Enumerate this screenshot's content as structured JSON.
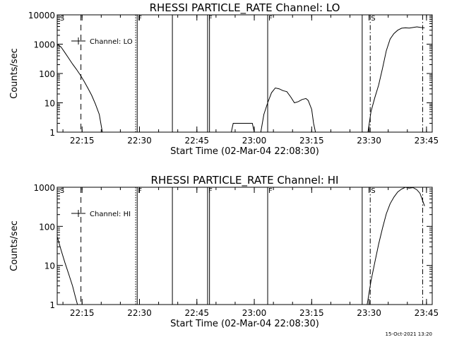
{
  "chart_data": [
    {
      "type": "line",
      "title": "RHESSI PARTICLE_RATE Channel: LO",
      "xlabel": "Start Time (02-Mar-04 22:08:30)",
      "ylabel": "Counts/sec",
      "yscale": "log",
      "ylim": [
        1,
        10000
      ],
      "xlim": [
        0,
        98
      ],
      "x_units": "minutes since 22:08:30",
      "yticks": [
        {
          "value": 1,
          "label": "1"
        },
        {
          "value": 10,
          "label": "10"
        },
        {
          "value": 100,
          "label": "100"
        },
        {
          "value": 1000,
          "label": "1000"
        },
        {
          "value": 10000,
          "label": "10000"
        }
      ],
      "xticks": [
        {
          "value": 6.5,
          "label": "22:15"
        },
        {
          "value": 21.5,
          "label": "22:30"
        },
        {
          "value": 36.5,
          "label": "22:45"
        },
        {
          "value": 51.5,
          "label": "23:00"
        },
        {
          "value": 66.5,
          "label": "23:15"
        },
        {
          "value": 81.5,
          "label": "23:30"
        },
        {
          "value": 96.5,
          "label": "23:45"
        }
      ],
      "legend": {
        "label": "Channel: LO",
        "position": "top-left"
      },
      "series": [
        {
          "name": "Channel: LO",
          "segments": [
            [
              [
                0,
                1000
              ],
              [
                1,
                800
              ],
              [
                2,
                520
              ],
              [
                3,
                330
              ],
              [
                4,
                210
              ],
              [
                5,
                140
              ],
              [
                6,
                90
              ],
              [
                7,
                55
              ],
              [
                8,
                32
              ],
              [
                9,
                18
              ],
              [
                10,
                9
              ],
              [
                11,
                4
              ],
              [
                11.8,
                1
              ]
            ],
            [
              [
                45.5,
                1
              ],
              [
                46,
                2
              ],
              [
                51,
                2
              ],
              [
                51.5,
                1
              ]
            ],
            [
              [
                53.2,
                1
              ],
              [
                54,
                4
              ],
              [
                55,
                10
              ],
              [
                56,
                22
              ],
              [
                57,
                32
              ],
              [
                58,
                30
              ],
              [
                59,
                26
              ],
              [
                60,
                24
              ],
              [
                61,
                16
              ],
              [
                62,
                10
              ],
              [
                63,
                11
              ],
              [
                64,
                13
              ],
              [
                65,
                14
              ],
              [
                65.6,
                12
              ],
              [
                66.5,
                6
              ],
              [
                67,
                2
              ],
              [
                67.5,
                1
              ]
            ],
            [
              [
                81.2,
                1
              ],
              [
                82,
                5
              ],
              [
                83,
                15
              ],
              [
                84,
                40
              ],
              [
                85,
                150
              ],
              [
                86,
                600
              ],
              [
                87,
                1500
              ],
              [
                88,
                2300
              ],
              [
                89,
                3000
              ],
              [
                90,
                3500
              ],
              [
                91,
                3600
              ],
              [
                92,
                3550
              ],
              [
                93,
                3700
              ],
              [
                94,
                3900
              ],
              [
                95,
                3700
              ],
              [
                96,
                3600
              ]
            ]
          ]
        }
      ],
      "vlines": [
        {
          "x": 6.2,
          "style": "dashed"
        },
        {
          "x": 20.5,
          "style": "dotted"
        },
        {
          "x": 20.9,
          "style": "solid",
          "flag": "F"
        },
        {
          "x": 30.1,
          "style": "solid"
        },
        {
          "x": 39.3,
          "style": "solid",
          "flag": "F"
        },
        {
          "x": 39.8,
          "style": "solid"
        },
        {
          "x": 55.0,
          "style": "solid",
          "flag": "F"
        },
        {
          "x": 79.7,
          "style": "solid"
        },
        {
          "x": 81.8,
          "style": "dashdot",
          "flag": "S"
        },
        {
          "x": 95.5,
          "style": "dashdot"
        },
        {
          "x": 0.5,
          "style": "none",
          "flag": "S"
        }
      ]
    },
    {
      "type": "line",
      "title": "RHESSI PARTICLE_RATE Channel: HI",
      "xlabel": "Start Time (02-Mar-04 22:08:30)",
      "ylabel": "Counts/sec",
      "yscale": "log",
      "ylim": [
        1,
        1000
      ],
      "xlim": [
        0,
        98
      ],
      "x_units": "minutes since 22:08:30",
      "yticks": [
        {
          "value": 1,
          "label": "1"
        },
        {
          "value": 10,
          "label": "10"
        },
        {
          "value": 100,
          "label": "100"
        },
        {
          "value": 1000,
          "label": "1000"
        }
      ],
      "xticks": [
        {
          "value": 6.5,
          "label": "22:15"
        },
        {
          "value": 21.5,
          "label": "22:30"
        },
        {
          "value": 36.5,
          "label": "22:45"
        },
        {
          "value": 51.5,
          "label": "23:00"
        },
        {
          "value": 66.5,
          "label": "23:15"
        },
        {
          "value": 81.5,
          "label": "23:30"
        },
        {
          "value": 96.5,
          "label": "23:45"
        }
      ],
      "legend": {
        "label": "Channel: HI",
        "position": "top-left"
      },
      "series": [
        {
          "name": "Channel: HI",
          "segments": [
            [
              [
                0,
                55
              ],
              [
                1,
                25
              ],
              [
                2,
                12
              ],
              [
                3,
                6
              ],
              [
                4,
                3
              ],
              [
                4.8,
                1.5
              ],
              [
                5.3,
                1
              ]
            ],
            [
              [
                81.0,
                1
              ],
              [
                82,
                4
              ],
              [
                83,
                12
              ],
              [
                84,
                35
              ],
              [
                85,
                90
              ],
              [
                86,
                210
              ],
              [
                87,
                380
              ],
              [
                88,
                560
              ],
              [
                89,
                760
              ],
              [
                90,
                900
              ],
              [
                91,
                1000
              ],
              [
                92,
                950
              ],
              [
                93,
                980
              ],
              [
                94,
                860
              ],
              [
                94.8,
                700
              ],
              [
                95.5,
                450
              ],
              [
                96,
                330
              ]
            ]
          ]
        }
      ],
      "vlines": [
        {
          "x": 6.2,
          "style": "dashed"
        },
        {
          "x": 20.5,
          "style": "dotted"
        },
        {
          "x": 20.9,
          "style": "solid",
          "flag": "F"
        },
        {
          "x": 30.1,
          "style": "solid"
        },
        {
          "x": 39.3,
          "style": "solid",
          "flag": "F"
        },
        {
          "x": 39.8,
          "style": "solid"
        },
        {
          "x": 55.0,
          "style": "solid",
          "flag": "F"
        },
        {
          "x": 79.7,
          "style": "solid"
        },
        {
          "x": 81.8,
          "style": "dashdot",
          "flag": "S"
        },
        {
          "x": 95.5,
          "style": "dashdot"
        },
        {
          "x": 0.5,
          "style": "none",
          "flag": "S"
        }
      ]
    }
  ],
  "footer": {
    "timestamp": "15-Oct-2021 13:20"
  }
}
